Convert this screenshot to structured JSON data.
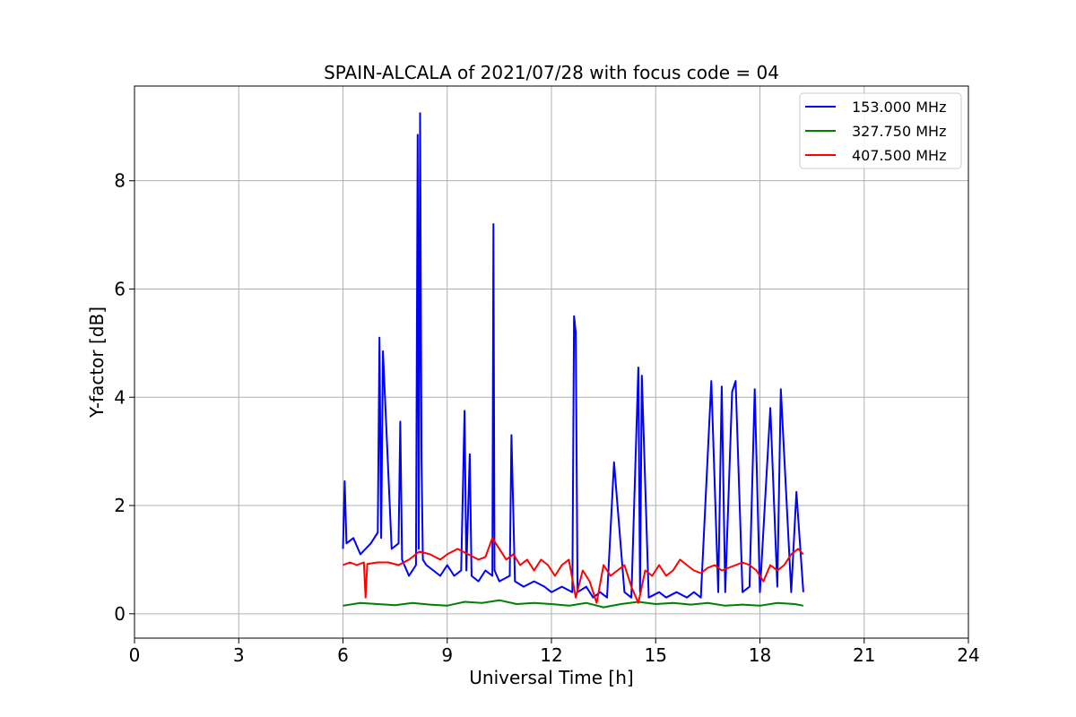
{
  "chart_data": {
    "type": "line",
    "title": "SPAIN-ALCALA of 2021/07/28 with focus code = 04",
    "xlabel": "Universal Time [h]",
    "ylabel": "Y-factor [dB]",
    "xlim": [
      0,
      24
    ],
    "ylim": [
      -0.45,
      9.75
    ],
    "xticks": [
      0,
      3,
      6,
      9,
      12,
      15,
      18,
      21,
      24
    ],
    "xtick_labels": [
      "0",
      "3",
      "6",
      "9",
      "12",
      "15",
      "18",
      "21",
      "24"
    ],
    "yticks": [
      0,
      2,
      4,
      6,
      8
    ],
    "ytick_labels": [
      "0",
      "2",
      "4",
      "6",
      "8"
    ],
    "grid": true,
    "legend_position": "top-right",
    "series": [
      {
        "name": "153.000 MHz",
        "color": "#0000ff",
        "x": [
          6.0,
          6.05,
          6.1,
          6.3,
          6.5,
          6.8,
          7.0,
          7.05,
          7.1,
          7.15,
          7.4,
          7.6,
          7.65,
          7.7,
          7.9,
          8.1,
          8.15,
          8.18,
          8.22,
          8.26,
          8.3,
          8.4,
          8.6,
          8.8,
          9.0,
          9.2,
          9.4,
          9.5,
          9.55,
          9.65,
          9.7,
          9.9,
          10.1,
          10.3,
          10.33,
          10.36,
          10.5,
          10.8,
          10.85,
          10.95,
          11.2,
          11.5,
          11.8,
          12.0,
          12.3,
          12.6,
          12.65,
          12.7,
          12.75,
          13.0,
          13.2,
          13.4,
          13.6,
          13.8,
          14.1,
          14.3,
          14.5,
          14.55,
          14.6,
          14.8,
          15.1,
          15.3,
          15.6,
          15.9,
          16.1,
          16.3,
          16.6,
          16.8,
          16.9,
          17.0,
          17.2,
          17.3,
          17.5,
          17.7,
          17.85,
          18.0,
          18.3,
          18.5,
          18.6,
          18.9,
          19.05,
          19.25
        ],
        "y": [
          1.2,
          2.45,
          1.3,
          1.4,
          1.1,
          1.3,
          1.5,
          5.1,
          1.4,
          4.85,
          1.2,
          1.3,
          3.55,
          1.0,
          0.7,
          0.9,
          8.85,
          1.2,
          9.25,
          2.85,
          1.0,
          0.9,
          0.8,
          0.7,
          0.9,
          0.7,
          0.8,
          3.75,
          0.8,
          2.95,
          0.7,
          0.6,
          0.8,
          0.7,
          7.2,
          0.8,
          0.6,
          0.7,
          3.3,
          0.6,
          0.5,
          0.6,
          0.5,
          0.4,
          0.5,
          0.4,
          5.5,
          5.2,
          0.4,
          0.5,
          0.3,
          0.4,
          0.3,
          2.8,
          0.4,
          0.3,
          4.55,
          0.4,
          4.4,
          0.3,
          0.4,
          0.3,
          0.4,
          0.3,
          0.4,
          0.3,
          4.3,
          0.4,
          4.2,
          0.4,
          4.1,
          4.3,
          0.4,
          0.5,
          4.15,
          0.4,
          3.8,
          0.5,
          4.15,
          0.4,
          2.25,
          0.4
        ]
      },
      {
        "name": "327.750 MHz",
        "color": "#008000",
        "x": [
          6.0,
          6.5,
          7.0,
          7.5,
          8.0,
          8.5,
          9.0,
          9.5,
          10.0,
          10.5,
          11.0,
          11.5,
          12.0,
          12.5,
          13.0,
          13.5,
          14.0,
          14.5,
          15.0,
          15.5,
          16.0,
          16.5,
          17.0,
          17.5,
          18.0,
          18.5,
          19.0,
          19.25
        ],
        "y": [
          0.15,
          0.2,
          0.18,
          0.16,
          0.2,
          0.17,
          0.15,
          0.22,
          0.2,
          0.25,
          0.18,
          0.2,
          0.18,
          0.15,
          0.2,
          0.12,
          0.18,
          0.22,
          0.18,
          0.2,
          0.17,
          0.2,
          0.15,
          0.17,
          0.15,
          0.2,
          0.18,
          0.15
        ]
      },
      {
        "name": "407.500 MHz",
        "color": "#ff0000",
        "x": [
          6.0,
          6.2,
          6.4,
          6.6,
          6.65,
          6.7,
          7.0,
          7.3,
          7.6,
          7.9,
          8.2,
          8.5,
          8.8,
          9.0,
          9.3,
          9.6,
          9.9,
          10.1,
          10.3,
          10.5,
          10.7,
          10.9,
          11.1,
          11.3,
          11.5,
          11.7,
          11.9,
          12.1,
          12.3,
          12.5,
          12.7,
          12.9,
          13.1,
          13.3,
          13.5,
          13.7,
          13.9,
          14.1,
          14.3,
          14.5,
          14.7,
          14.9,
          15.1,
          15.3,
          15.5,
          15.7,
          15.9,
          16.1,
          16.3,
          16.5,
          16.7,
          16.9,
          17.1,
          17.3,
          17.5,
          17.7,
          17.9,
          18.1,
          18.3,
          18.5,
          18.7,
          18.9,
          19.1,
          19.25
        ],
        "y": [
          0.9,
          0.95,
          0.9,
          0.95,
          0.3,
          0.92,
          0.95,
          0.95,
          0.9,
          1.0,
          1.15,
          1.1,
          1.0,
          1.1,
          1.2,
          1.1,
          1.0,
          1.05,
          1.4,
          1.2,
          1.0,
          1.1,
          0.9,
          1.0,
          0.8,
          1.0,
          0.9,
          0.7,
          0.9,
          1.0,
          0.3,
          0.8,
          0.6,
          0.2,
          0.9,
          0.7,
          0.8,
          0.9,
          0.5,
          0.2,
          0.8,
          0.7,
          0.9,
          0.7,
          0.8,
          1.0,
          0.9,
          0.8,
          0.75,
          0.85,
          0.9,
          0.8,
          0.85,
          0.9,
          0.95,
          0.9,
          0.8,
          0.6,
          0.9,
          0.8,
          0.9,
          1.1,
          1.2,
          1.1
        ]
      }
    ]
  }
}
